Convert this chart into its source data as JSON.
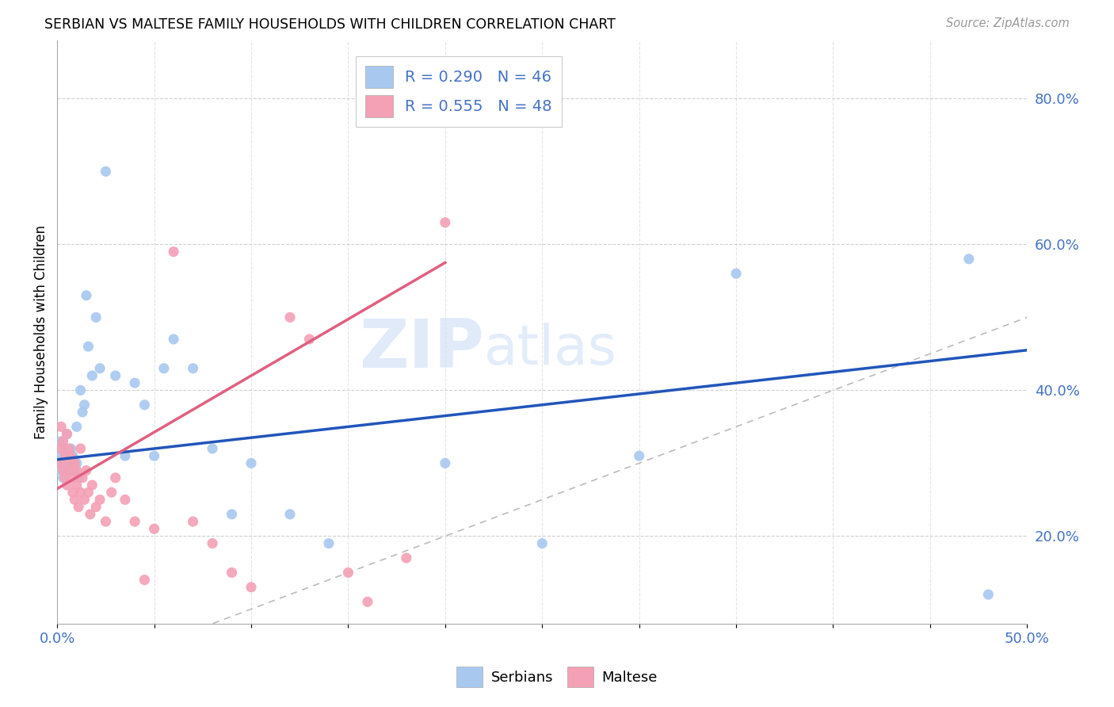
{
  "title": "SERBIAN VS MALTESE FAMILY HOUSEHOLDS WITH CHILDREN CORRELATION CHART",
  "source": "Source: ZipAtlas.com",
  "ylabel": "Family Households with Children",
  "xlim": [
    0.0,
    0.5
  ],
  "ylim": [
    0.08,
    0.88
  ],
  "yticks": [
    0.2,
    0.4,
    0.6,
    0.8
  ],
  "ytick_labels": [
    "20.0%",
    "40.0%",
    "60.0%",
    "80.0%"
  ],
  "xticks": [
    0.0,
    0.05,
    0.1,
    0.15,
    0.2,
    0.25,
    0.3,
    0.35,
    0.4,
    0.45,
    0.5
  ],
  "serbian_color": "#a8c8f0",
  "maltese_color": "#f4a0b5",
  "serbian_line_color": "#2255bb",
  "maltese_line_color": "#e06080",
  "diagonal_line_color": "#bbbbbb",
  "R_serbian": 0.29,
  "N_serbian": 46,
  "R_maltese": 0.555,
  "N_maltese": 48,
  "watermark_zip": "ZIP",
  "watermark_atlas": "atlas",
  "serbian_x": [
    0.001,
    0.002,
    0.002,
    0.003,
    0.003,
    0.004,
    0.004,
    0.005,
    0.005,
    0.006,
    0.006,
    0.007,
    0.007,
    0.008,
    0.009,
    0.01,
    0.01,
    0.011,
    0.012,
    0.013,
    0.014,
    0.015,
    0.016,
    0.018,
    0.02,
    0.022,
    0.025,
    0.03,
    0.035,
    0.04,
    0.045,
    0.05,
    0.055,
    0.06,
    0.07,
    0.08,
    0.09,
    0.1,
    0.12,
    0.14,
    0.2,
    0.25,
    0.3,
    0.35,
    0.47,
    0.48
  ],
  "serbian_y": [
    0.31,
    0.29,
    0.33,
    0.3,
    0.28,
    0.32,
    0.31,
    0.29,
    0.34,
    0.3,
    0.29,
    0.32,
    0.3,
    0.31,
    0.29,
    0.3,
    0.35,
    0.28,
    0.4,
    0.37,
    0.38,
    0.53,
    0.46,
    0.42,
    0.5,
    0.43,
    0.7,
    0.42,
    0.31,
    0.41,
    0.38,
    0.31,
    0.43,
    0.47,
    0.43,
    0.32,
    0.23,
    0.3,
    0.23,
    0.19,
    0.3,
    0.19,
    0.31,
    0.56,
    0.58,
    0.12
  ],
  "maltese_x": [
    0.001,
    0.002,
    0.002,
    0.003,
    0.003,
    0.004,
    0.004,
    0.005,
    0.005,
    0.006,
    0.006,
    0.007,
    0.007,
    0.008,
    0.008,
    0.009,
    0.009,
    0.01,
    0.01,
    0.011,
    0.012,
    0.012,
    0.013,
    0.014,
    0.015,
    0.016,
    0.017,
    0.018,
    0.02,
    0.022,
    0.025,
    0.028,
    0.03,
    0.035,
    0.04,
    0.045,
    0.05,
    0.06,
    0.07,
    0.08,
    0.09,
    0.1,
    0.12,
    0.13,
    0.15,
    0.16,
    0.18,
    0.2
  ],
  "maltese_y": [
    0.3,
    0.35,
    0.32,
    0.29,
    0.33,
    0.31,
    0.28,
    0.34,
    0.27,
    0.3,
    0.32,
    0.29,
    0.31,
    0.26,
    0.28,
    0.3,
    0.25,
    0.29,
    0.27,
    0.24,
    0.32,
    0.26,
    0.28,
    0.25,
    0.29,
    0.26,
    0.23,
    0.27,
    0.24,
    0.25,
    0.22,
    0.26,
    0.28,
    0.25,
    0.22,
    0.14,
    0.21,
    0.59,
    0.22,
    0.19,
    0.15,
    0.13,
    0.5,
    0.47,
    0.15,
    0.11,
    0.17,
    0.63
  ],
  "serb_line_x0": 0.0,
  "serb_line_y0": 0.305,
  "serb_line_x1": 0.5,
  "serb_line_y1": 0.455,
  "malt_line_x0": 0.0,
  "malt_line_y0": 0.265,
  "malt_line_x1": 0.2,
  "malt_line_y1": 0.575
}
